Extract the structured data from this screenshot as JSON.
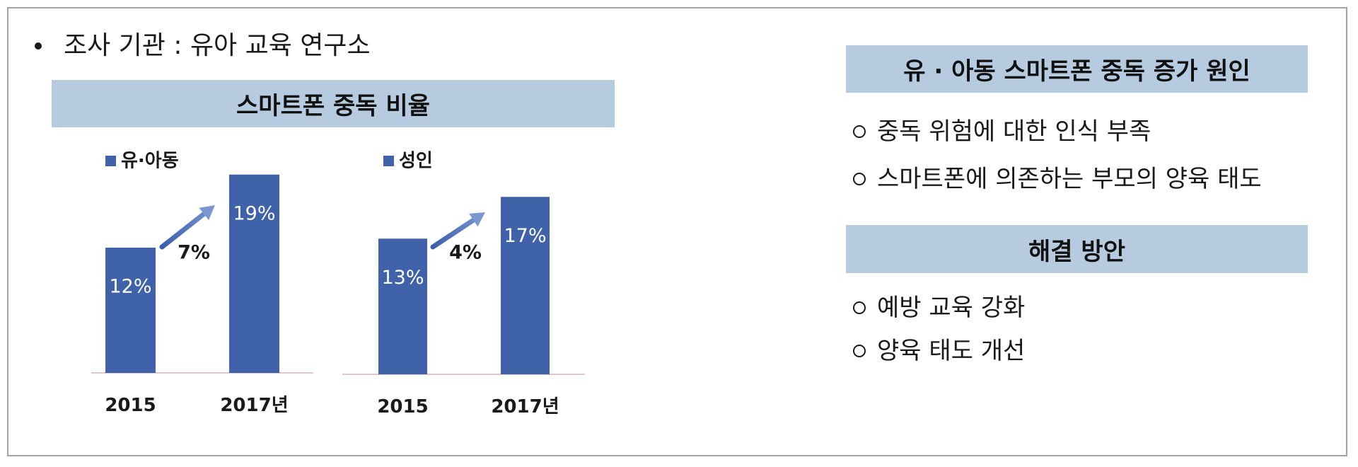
{
  "info": {
    "label": "조사 기관 : 유아 교육 연구소",
    "bullet_icon": "bullet-dot-icon"
  },
  "chart_section": {
    "title": "스마트폰 중독 비율"
  },
  "chart_data": [
    {
      "type": "bar",
      "categories": [
        "2015",
        "2017년"
      ],
      "series": [
        {
          "name": "유·아동",
          "values": [
            12,
            19
          ],
          "labels": [
            "12%",
            "19%"
          ]
        }
      ],
      "annotation": {
        "text": "7%",
        "icon": "trend-arrow-icon"
      },
      "ylim": [
        0,
        20
      ],
      "grid": false,
      "legend": "top-left"
    },
    {
      "type": "bar",
      "categories": [
        "2015",
        "2017년"
      ],
      "series": [
        {
          "name": "성인",
          "values": [
            13,
            17
          ],
          "labels": [
            "13%",
            "17%"
          ]
        }
      ],
      "annotation": {
        "text": "4%",
        "icon": "trend-arrow-icon"
      },
      "ylim": [
        0,
        20
      ],
      "grid": false,
      "legend": "top-left"
    }
  ],
  "causes": {
    "header": "유 · 아동 스마트폰 중독 증가 원인",
    "items": [
      "중독 위험에 대한 인식 부족",
      "스마트폰에 의존하는 부모의 양육 태도"
    ]
  },
  "solutions": {
    "header": "해결 방안",
    "items": [
      "예방 교육 강화",
      "양육 태도 개선"
    ]
  },
  "list_bullet_icon": "circle-bullet-icon",
  "colors": {
    "bar": "#4062a9",
    "header_bg": "#b6cbe0",
    "arrow_start": "#3d5fab",
    "arrow_end": "#7a97d0",
    "baseline": "#dcc8cc",
    "frame_border": "#a3a3a3",
    "text": "#1a1a1a"
  }
}
